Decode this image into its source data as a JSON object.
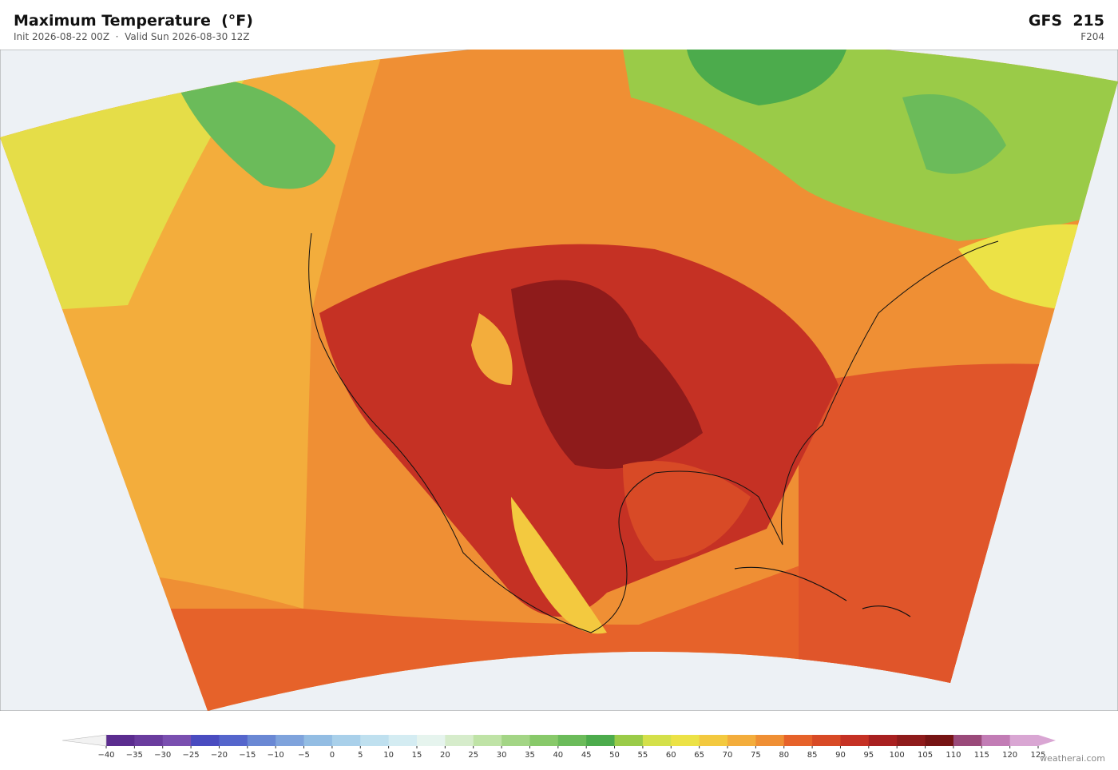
{
  "header": {
    "title": "Maximum Temperature  (°F)",
    "subtitle": "Init 2026-08-22 00Z  ·  Valid Sun 2026-08-30 12Z",
    "model": "GFS  215",
    "forecast_hour": "F204"
  },
  "colorbar": {
    "ticks": [
      {
        "value": -40,
        "label": "−40"
      },
      {
        "value": -35,
        "label": "−35"
      },
      {
        "value": -30,
        "label": "−30"
      },
      {
        "value": -25,
        "label": "−25"
      },
      {
        "value": -20,
        "label": "−20"
      },
      {
        "value": -15,
        "label": "−15"
      },
      {
        "value": -10,
        "label": "−10"
      },
      {
        "value": -5,
        "label": "−5"
      },
      0,
      5,
      10,
      15,
      20,
      25,
      30,
      35,
      40,
      45,
      50,
      55,
      60,
      65,
      70,
      75,
      80,
      85,
      90,
      95,
      100,
      105,
      110,
      115,
      120,
      125
    ],
    "colors": [
      "#5b2c8f",
      "#6a3c9e",
      "#7a4fb0",
      "#4a4cc0",
      "#5566cc",
      "#6a88d4",
      "#7fa3dc",
      "#93bde3",
      "#a9d0ea",
      "#bfe0ef",
      "#d4ecf2",
      "#e6f4ee",
      "#d6eccb",
      "#bfe3a6",
      "#a3d585",
      "#88c96a",
      "#6bbb5a",
      "#4cab4c",
      "#9acb48",
      "#d4e04a",
      "#ece246",
      "#f3c93f",
      "#f3ad3c",
      "#ef8f34",
      "#e6622a",
      "#d84a26",
      "#c53124",
      "#a82020",
      "#8e1b1b",
      "#761414",
      "#9a4a7a",
      "#c27cb5",
      "#d9a6d3"
    ],
    "under_color": "#f2f2f2",
    "over_color": "#d9a6d3"
  },
  "watermark": "weatherai.com"
}
